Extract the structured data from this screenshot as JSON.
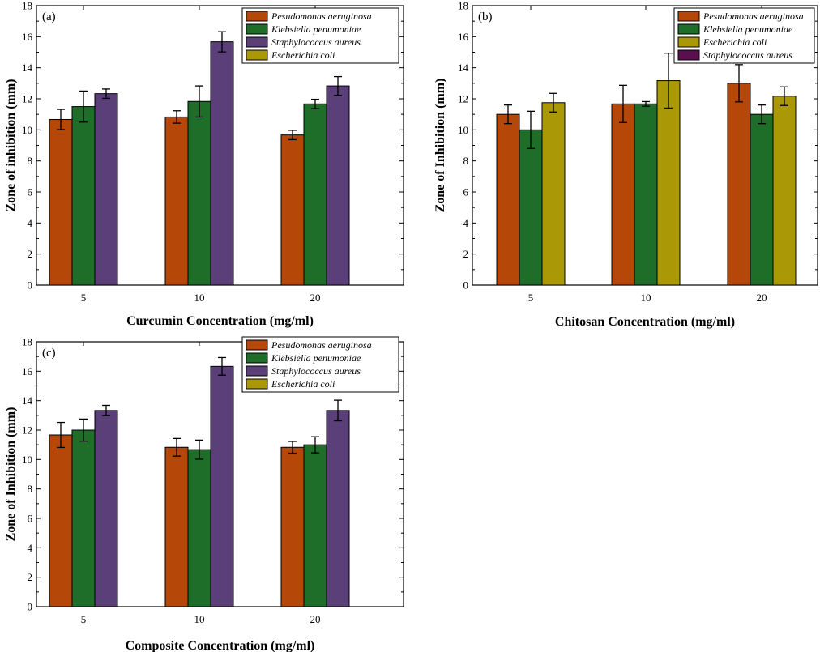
{
  "colors": {
    "pseudomonas": "#b54708",
    "klebsiella": "#1e6e2a",
    "staph": "#5b3f78",
    "ecoli": "#ab9806",
    "staph_dark": "#5c0f4e"
  },
  "chart_data": [
    {
      "type": "bar",
      "panel_label": "(a)",
      "title": "",
      "xlabel": "Curcumin Concentration (mg/ml)",
      "ylabel": "Zone of inhibition (mm)",
      "ylim": [
        0,
        18
      ],
      "yticks": [
        "0",
        "2",
        "4",
        "6",
        "8",
        "10",
        "12",
        "14",
        "16",
        "18"
      ],
      "categories": [
        "5",
        "10",
        "20"
      ],
      "legend_position": "top-right",
      "legend": [
        {
          "name": "Pesudomonas aeruginosa",
          "color": "#b54708"
        },
        {
          "name": "Klebsiella penumoniae",
          "color": "#1e6e2a"
        },
        {
          "name": "Staphylococcus aureus",
          "color": "#5b3f78"
        },
        {
          "name": "Escherichia coli",
          "color": "#ab9806"
        }
      ],
      "series": [
        {
          "name": "Pesudomonas aeruginosa",
          "color": "#b54708",
          "values": [
            10.67,
            10.83,
            9.67
          ],
          "errors": [
            0.65,
            0.4,
            0.3
          ]
        },
        {
          "name": "Klebsiella penumoniae",
          "color": "#1e6e2a",
          "values": [
            11.5,
            11.83,
            11.67
          ],
          "errors": [
            1.0,
            1.0,
            0.3
          ]
        },
        {
          "name": "Staphylococcus aureus",
          "color": "#5b3f78",
          "values": [
            12.33,
            15.67,
            12.83
          ],
          "errors": [
            0.3,
            0.65,
            0.6
          ]
        }
      ]
    },
    {
      "type": "bar",
      "panel_label": "(b)",
      "title": "",
      "xlabel": "Chitosan Concentration (mg/ml)",
      "ylabel": "Zone of Inhibition (mm)",
      "ylim": [
        0,
        18
      ],
      "yticks": [
        "0",
        "2",
        "4",
        "6",
        "8",
        "10",
        "12",
        "14",
        "16",
        "18"
      ],
      "categories": [
        "5",
        "10",
        "20"
      ],
      "legend_position": "top-right",
      "legend": [
        {
          "name": "Pesudomonas aeruginosa",
          "color": "#b54708"
        },
        {
          "name": "Klebsiella penumoniae",
          "color": "#1e6e2a"
        },
        {
          "name": "Escherichia coli",
          "color": "#ab9806"
        },
        {
          "name": "Staphylococcus aureus",
          "color": "#5c0f4e"
        }
      ],
      "series": [
        {
          "name": "Pesudomonas aeruginosa",
          "color": "#b54708",
          "values": [
            11.0,
            11.67,
            13.0
          ],
          "errors": [
            0.6,
            1.2,
            1.2
          ]
        },
        {
          "name": "Klebsiella penumoniae",
          "color": "#1e6e2a",
          "values": [
            10.0,
            11.67,
            11.0
          ],
          "errors": [
            1.2,
            0.15,
            0.6
          ]
        },
        {
          "name": "Escherichia coli",
          "color": "#ab9806",
          "values": [
            11.75,
            13.17,
            12.17
          ],
          "errors": [
            0.6,
            1.77,
            0.6
          ]
        }
      ]
    },
    {
      "type": "bar",
      "panel_label": "(c)",
      "title": "",
      "xlabel": "Composite Concentration (mg/ml)",
      "ylabel": "Zone of Inhibition (mm)",
      "ylim": [
        0,
        18
      ],
      "yticks": [
        "0",
        "2",
        "4",
        "6",
        "8",
        "10",
        "12",
        "14",
        "16",
        "18"
      ],
      "categories": [
        "5",
        "10",
        "20"
      ],
      "legend_position": "top-right",
      "legend": [
        {
          "name": "Pesudomonas aeruginosa",
          "color": "#b54708"
        },
        {
          "name": "Klebsiella penumoniae",
          "color": "#1e6e2a"
        },
        {
          "name": "Staphylococcus aureus",
          "color": "#5b3f78"
        },
        {
          "name": "Escherichia coli",
          "color": "#ab9806"
        }
      ],
      "series": [
        {
          "name": "Pesudomonas aeruginosa",
          "color": "#b54708",
          "values": [
            11.67,
            10.83,
            10.83
          ],
          "errors": [
            0.85,
            0.6,
            0.4
          ]
        },
        {
          "name": "Klebsiella penumoniae",
          "color": "#1e6e2a",
          "values": [
            12.0,
            10.67,
            11.0
          ],
          "errors": [
            0.75,
            0.65,
            0.55
          ]
        },
        {
          "name": "Staphylococcus aureus",
          "color": "#5b3f78",
          "values": [
            13.33,
            16.33,
            13.33
          ],
          "errors": [
            0.35,
            0.6,
            0.7
          ]
        }
      ]
    }
  ]
}
